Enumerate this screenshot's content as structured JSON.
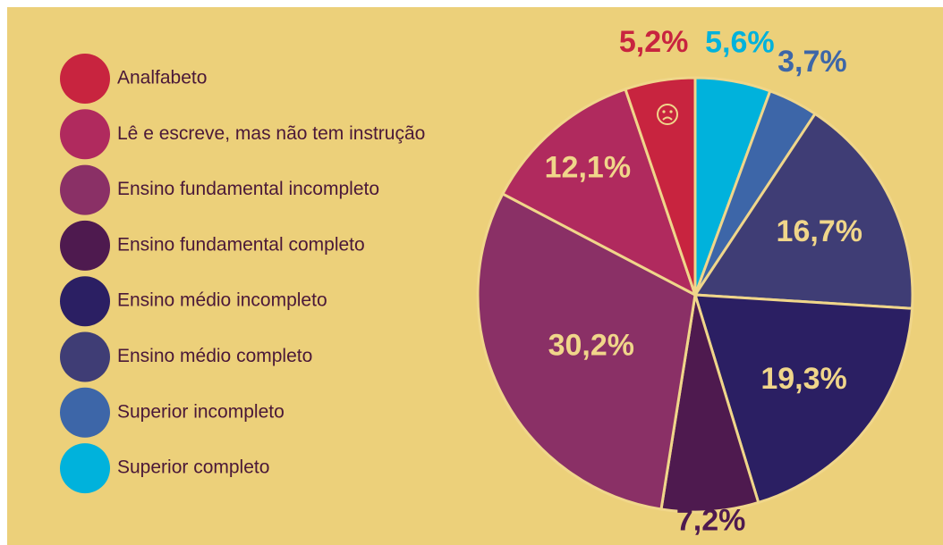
{
  "chart_data": {
    "type": "pie",
    "categories": [
      "Analfabeto",
      "Lê e escreve, mas não tem instrução",
      "Ensino fundamental incompleto",
      "Ensino fundamental completo",
      "Ensino médio incompleto",
      "Ensino médio completo",
      "Superior incompleto",
      "Superior completo"
    ],
    "values": [
      5.2,
      12.1,
      30.2,
      7.2,
      19.3,
      16.7,
      3.7,
      5.6
    ],
    "value_labels": [
      "5,2%",
      "12,1%",
      "30,2%",
      "7,2%",
      "19,3%",
      "16,7%",
      "3,7%",
      "5,6%"
    ],
    "colors": [
      "#c8243f",
      "#b02a5e",
      "#8a3066",
      "#4e1a4f",
      "#2b1f63",
      "#3f3d75",
      "#3d66a8",
      "#00b2dc"
    ],
    "legend": "left"
  }
}
